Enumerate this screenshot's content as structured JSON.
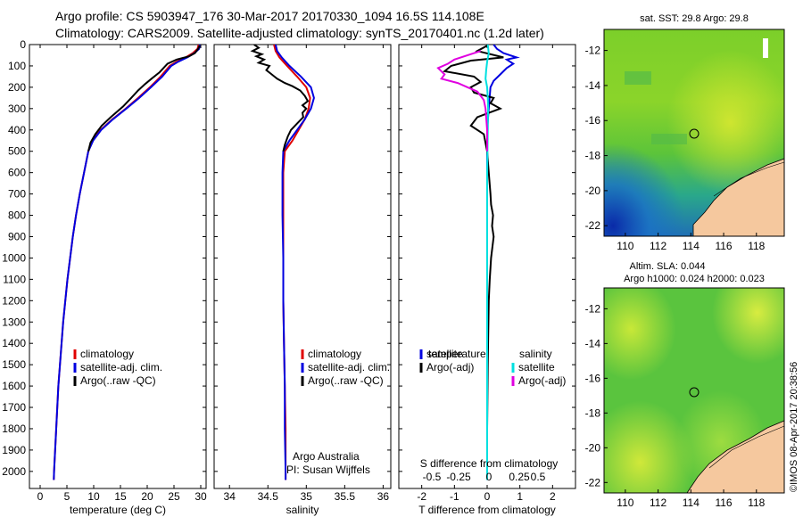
{
  "header": {
    "line1": "Argo profile: CS 5903947_176 30-Mar-2017 20170330_1094 16.5S 114.108E",
    "line2": "Climatology: CARS2009. Satellite-adjusted climatology: synTS_20170401.nc (1.2d later)"
  },
  "chart_data": [
    {
      "type": "line",
      "id": "temperature-profile",
      "xlabel": "temperature (deg C)",
      "ylabel": "",
      "xlim": [
        -2,
        31
      ],
      "ylim": [
        2080,
        0
      ],
      "xticks": [
        0,
        5,
        10,
        15,
        20,
        25,
        30
      ],
      "yticks": [
        0,
        100,
        200,
        300,
        400,
        500,
        600,
        700,
        800,
        900,
        1000,
        1100,
        1200,
        1300,
        1400,
        1500,
        1600,
        1700,
        1800,
        1900,
        2000
      ],
      "legend": [
        "climatology",
        "satellite-adj. clim.",
        "Argo(..raw -QC)"
      ],
      "series": [
        {
          "name": "climatology",
          "color": "#e00000",
          "points": [
            [
              29.6,
              0
            ],
            [
              29.4,
              20
            ],
            [
              28.5,
              40
            ],
            [
              27.2,
              60
            ],
            [
              25.5,
              80
            ],
            [
              24.2,
              100
            ],
            [
              22.5,
              150
            ],
            [
              20.5,
              200
            ],
            [
              18.3,
              250
            ],
            [
              16,
              300
            ],
            [
              13.5,
              350
            ],
            [
              11.3,
              400
            ],
            [
              9.8,
              450
            ],
            [
              9,
              500
            ],
            [
              8.2,
              600
            ],
            [
              7.4,
              700
            ],
            [
              6.7,
              800
            ],
            [
              6.1,
              900
            ],
            [
              5.6,
              1000
            ],
            [
              5.1,
              1100
            ],
            [
              4.7,
              1200
            ],
            [
              4.3,
              1300
            ],
            [
              4,
              1400
            ],
            [
              3.7,
              1500
            ],
            [
              3.4,
              1600
            ],
            [
              3.2,
              1700
            ],
            [
              3,
              1800
            ],
            [
              2.8,
              1900
            ],
            [
              2.6,
              2000
            ],
            [
              2.55,
              2040
            ]
          ]
        },
        {
          "name": "satellite-adj. clim.",
          "color": "#0000e0",
          "points": [
            [
              29.8,
              0
            ],
            [
              29.7,
              20
            ],
            [
              28.8,
              40
            ],
            [
              27.5,
              60
            ],
            [
              25.8,
              80
            ],
            [
              24.5,
              100
            ],
            [
              22.8,
              150
            ],
            [
              20.7,
              200
            ],
            [
              18.5,
              250
            ],
            [
              16.1,
              300
            ],
            [
              13.6,
              350
            ],
            [
              11.4,
              400
            ],
            [
              9.9,
              450
            ],
            [
              9,
              500
            ],
            [
              8.2,
              600
            ],
            [
              7.4,
              700
            ],
            [
              6.7,
              800
            ],
            [
              6.1,
              900
            ],
            [
              5.6,
              1000
            ],
            [
              5.1,
              1100
            ],
            [
              4.7,
              1200
            ],
            [
              4.3,
              1300
            ],
            [
              4,
              1400
            ],
            [
              3.7,
              1500
            ],
            [
              3.4,
              1600
            ],
            [
              3.2,
              1700
            ],
            [
              3,
              1800
            ],
            [
              2.8,
              1900
            ],
            [
              2.6,
              2000
            ],
            [
              2.55,
              2040
            ]
          ]
        },
        {
          "name": "Argo(..raw -QC)",
          "color": "#000000",
          "points": [
            [
              29.8,
              5
            ],
            [
              29.5,
              20
            ],
            [
              28.9,
              40
            ],
            [
              27.8,
              55
            ],
            [
              25.5,
              70
            ],
            [
              23.8,
              90
            ],
            [
              22.3,
              130
            ],
            [
              20.8,
              160
            ],
            [
              19.6,
              185
            ],
            [
              18.3,
              215
            ],
            [
              17,
              250
            ],
            [
              15.5,
              290
            ],
            [
              13.2,
              340
            ],
            [
              11.5,
              380
            ],
            [
              10.3,
              420
            ],
            [
              9.4,
              460
            ],
            [
              9,
              500
            ]
          ]
        }
      ]
    },
    {
      "type": "line",
      "id": "salinity-profile",
      "xlabel": "salinity",
      "ylabel": "",
      "xlim": [
        33.8,
        36.1
      ],
      "ylim": [
        2080,
        0
      ],
      "xticks": [
        34,
        34.5,
        35,
        35.5,
        36
      ],
      "legend": [
        "climatology",
        "satellite-adj. clim.",
        "Argo(..raw -QC)"
      ],
      "annotations": [
        "Argo Australia",
        "PI: Susan Wijffels"
      ],
      "series": [
        {
          "name": "climatology",
          "color": "#e00000",
          "points": [
            [
              34.58,
              0
            ],
            [
              34.6,
              30
            ],
            [
              34.65,
              60
            ],
            [
              34.75,
              100
            ],
            [
              34.88,
              150
            ],
            [
              35.0,
              200
            ],
            [
              35.05,
              250
            ],
            [
              35.03,
              300
            ],
            [
              34.98,
              350
            ],
            [
              34.9,
              400
            ],
            [
              34.82,
              450
            ],
            [
              34.72,
              500
            ],
            [
              34.7,
              600
            ],
            [
              34.7,
              800
            ],
            [
              34.7,
              1000
            ],
            [
              34.7,
              1200
            ],
            [
              34.71,
              1400
            ],
            [
              34.72,
              1600
            ],
            [
              34.73,
              1800
            ],
            [
              34.73,
              2000
            ],
            [
              34.73,
              2040
            ]
          ]
        },
        {
          "name": "satellite-adj. clim.",
          "color": "#0000e0",
          "points": [
            [
              34.6,
              0
            ],
            [
              34.62,
              30
            ],
            [
              34.68,
              60
            ],
            [
              34.78,
              100
            ],
            [
              34.93,
              150
            ],
            [
              35.06,
              200
            ],
            [
              35.1,
              250
            ],
            [
              35.06,
              300
            ],
            [
              34.98,
              350
            ],
            [
              34.88,
              400
            ],
            [
              34.78,
              450
            ],
            [
              34.7,
              500
            ],
            [
              34.69,
              600
            ],
            [
              34.69,
              800
            ],
            [
              34.7,
              1000
            ],
            [
              34.7,
              1200
            ],
            [
              34.71,
              1400
            ],
            [
              34.72,
              1600
            ],
            [
              34.72,
              1800
            ],
            [
              34.73,
              2000
            ],
            [
              34.73,
              2040
            ]
          ]
        },
        {
          "name": "Argo(..raw -QC)",
          "color": "#000000",
          "points": [
            [
              34.32,
              0
            ],
            [
              34.38,
              15
            ],
            [
              34.3,
              30
            ],
            [
              34.42,
              45
            ],
            [
              34.35,
              55
            ],
            [
              34.45,
              70
            ],
            [
              34.38,
              85
            ],
            [
              34.52,
              100
            ],
            [
              34.48,
              120
            ],
            [
              34.55,
              140
            ],
            [
              34.62,
              160
            ],
            [
              34.72,
              180
            ],
            [
              34.82,
              195
            ],
            [
              34.92,
              215
            ],
            [
              34.98,
              240
            ],
            [
              35.02,
              265
            ],
            [
              34.95,
              285
            ],
            [
              35.0,
              300
            ],
            [
              34.95,
              320
            ],
            [
              34.96,
              340
            ],
            [
              34.88,
              370
            ],
            [
              34.8,
              400
            ],
            [
              34.76,
              430
            ],
            [
              34.72,
              470
            ],
            [
              34.7,
              500
            ]
          ]
        }
      ]
    },
    {
      "type": "line",
      "id": "difference-profile",
      "xlabel": "T difference from climatology",
      "xlabel_top": "S difference from climatology",
      "xlim": [
        -2.7,
        2.7
      ],
      "ylim": [
        2080,
        0
      ],
      "xticks": [
        -2,
        -1,
        0,
        1,
        2
      ],
      "xticks_top": [
        "-0.5",
        "-0.25",
        "0",
        "0.25",
        "0.5"
      ],
      "legend_temperature": [
        "temperature",
        "satellite",
        "Argo(-adj)"
      ],
      "legend_salinity": [
        "salinity",
        "satellite",
        "Argo(-adj)"
      ],
      "series": [
        {
          "name": "T satellite",
          "color": "#0000e0",
          "points": [
            [
              0.2,
              0
            ],
            [
              0.3,
              20
            ],
            [
              0.5,
              40
            ],
            [
              0.9,
              60
            ],
            [
              0.6,
              70
            ],
            [
              0.8,
              90
            ],
            [
              0.6,
              110
            ],
            [
              0.4,
              140
            ],
            [
              0.2,
              170
            ],
            [
              0.1,
              200
            ],
            [
              0.05,
              300
            ],
            [
              0,
              400
            ],
            [
              0,
              2040
            ]
          ]
        },
        {
          "name": "T Argo(-adj)",
          "color": "#000000",
          "points": [
            [
              0,
              5
            ],
            [
              -0.3,
              30
            ],
            [
              0.5,
              60
            ],
            [
              -0.5,
              75
            ],
            [
              -1.1,
              100
            ],
            [
              -1.3,
              125
            ],
            [
              -0.4,
              150
            ],
            [
              -0.2,
              175
            ],
            [
              -0.5,
              200
            ],
            [
              -0.4,
              225
            ],
            [
              0.2,
              250
            ],
            [
              0.1,
              275
            ],
            [
              0.4,
              300
            ],
            [
              -0.3,
              340
            ],
            [
              -0.5,
              380
            ],
            [
              -0.1,
              420
            ],
            [
              0,
              500
            ],
            [
              0.05,
              600
            ],
            [
              0.1,
              700
            ],
            [
              0.12,
              750
            ],
            [
              0.18,
              800
            ],
            [
              0.15,
              850
            ],
            [
              0.2,
              900
            ],
            [
              0.12,
              1000
            ],
            [
              0.08,
              1100
            ],
            [
              0.05,
              1200
            ],
            [
              0.02,
              1500
            ],
            [
              0,
              1800
            ],
            [
              0,
              2000
            ]
          ]
        },
        {
          "name": "S satellite",
          "color": "#00e0e0",
          "points": [
            [
              0.02,
              0
            ],
            [
              0.05,
              40
            ],
            [
              0,
              80
            ],
            [
              -0.03,
              120
            ],
            [
              -0.05,
              160
            ],
            [
              0,
              200
            ],
            [
              0.02,
              250
            ],
            [
              0.03,
              300
            ],
            [
              0.02,
              400
            ],
            [
              0,
              600
            ],
            [
              0,
              2040
            ]
          ]
        },
        {
          "name": "S Argo(-adj)",
          "color": "#e000e0",
          "points": [
            [
              -0.2,
              30
            ],
            [
              -1.0,
              70
            ],
            [
              -1.2,
              90
            ],
            [
              -1.5,
              110
            ],
            [
              -1.3,
              140
            ],
            [
              -1.4,
              160
            ],
            [
              -0.9,
              180
            ],
            [
              -0.6,
              200
            ],
            [
              -0.3,
              220
            ],
            [
              -0.2,
              240
            ],
            [
              -0.1,
              260
            ],
            [
              -0.05,
              300
            ],
            [
              0,
              400
            ],
            [
              0,
              500
            ]
          ]
        }
      ]
    },
    {
      "type": "heatmap",
      "id": "sst-map",
      "title": "sat. SST: 29.8  Argo: 29.8",
      "xlim": [
        108.7,
        119.7
      ],
      "ylim": [
        -22.6,
        -10.8
      ],
      "xticks": [
        110,
        112,
        114,
        116,
        118
      ],
      "yticks": [
        -12,
        -14,
        -16,
        -18,
        -20,
        -22
      ],
      "argo_location": [
        114.1,
        -16.5
      ]
    },
    {
      "type": "heatmap",
      "id": "sla-map",
      "title_line1": "Altim. SLA: 0.044",
      "title_line2": "Argo h1000: 0.024 h2000: 0.023",
      "xlim": [
        108.7,
        119.7
      ],
      "ylim": [
        -22.6,
        -10.8
      ],
      "xticks": [
        110,
        112,
        114,
        116,
        118
      ],
      "yticks": [
        -12,
        -14,
        -16,
        -18,
        -20,
        -22
      ],
      "argo_location": [
        114.1,
        -16.5
      ]
    }
  ],
  "footer": {
    "credit": "©IMOS 08-Apr-2017 20:38:56"
  },
  "colors": {
    "climatology": "#e00000",
    "satellite": "#0000e0",
    "argo": "#000000",
    "salinity_satellite": "#00e0e0",
    "salinity_argo": "#e000e0",
    "land": "#f5c89e"
  }
}
